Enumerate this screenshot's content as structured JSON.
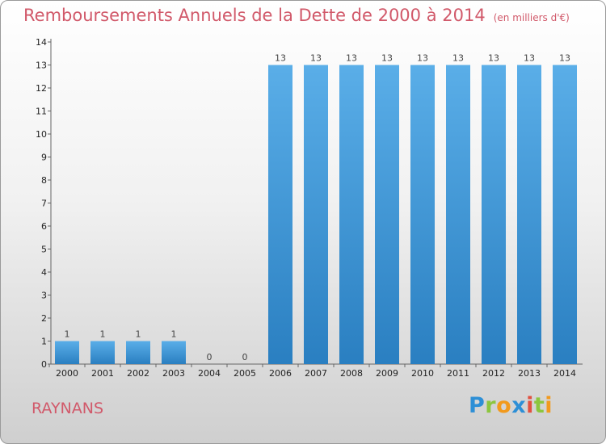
{
  "chart_data": {
    "type": "bar",
    "title": "Remboursements Annuels de la Dette de 2000 à 2014",
    "unit": "(en milliers d'€)",
    "categories": [
      "2000",
      "2001",
      "2002",
      "2003",
      "2004",
      "2005",
      "2006",
      "2007",
      "2008",
      "2009",
      "2010",
      "2011",
      "2012",
      "2013",
      "2014"
    ],
    "values": [
      1,
      1,
      1,
      1,
      0,
      0,
      13,
      13,
      13,
      13,
      13,
      13,
      13,
      13,
      13
    ],
    "data_labels": [
      "1",
      "1",
      "1",
      "1",
      "0",
      "0",
      "13",
      "13",
      "13",
      "13",
      "13",
      "13",
      "13",
      "13",
      "13"
    ],
    "yticks": [
      0,
      1,
      2,
      3,
      4,
      5,
      6,
      7,
      8,
      9,
      10,
      11,
      12,
      13,
      14
    ],
    "ylim": [
      0,
      14
    ],
    "xlabel": "",
    "ylabel": "",
    "grid": false,
    "bar_color": "#3a97db"
  },
  "commune": "RAYNANS",
  "logo": {
    "text": "Proxiti"
  }
}
